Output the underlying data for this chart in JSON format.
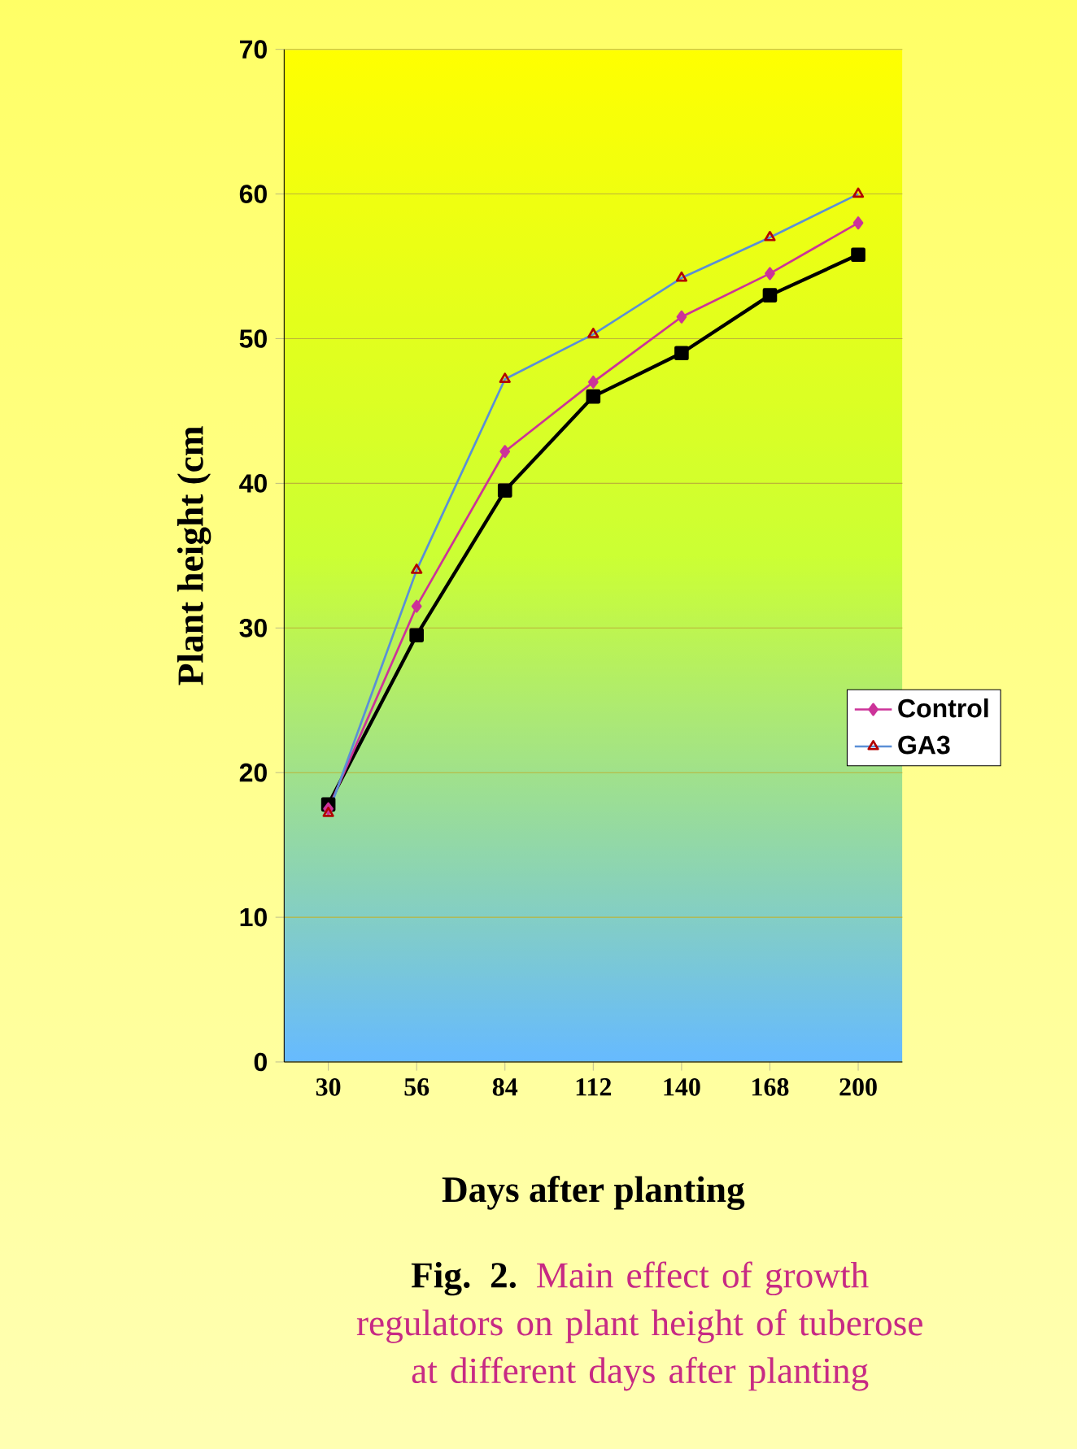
{
  "chart_data": {
    "type": "line",
    "xlabel": "Days after planting",
    "ylabel": "Plant height (cm",
    "categories": [
      "30",
      "56",
      "84",
      "112",
      "140",
      "168",
      "200"
    ],
    "series": [
      {
        "name": "Control",
        "color": "#cc3399",
        "marker": "diamond",
        "values": [
          17.5,
          31.5,
          42.2,
          47,
          51.5,
          54.5,
          58
        ]
      },
      {
        "color": "#000000",
        "marker": "square",
        "values": [
          17.8,
          29.5,
          39.5,
          46,
          49,
          53,
          55.8
        ]
      },
      {
        "name": "GA3",
        "color": "#5b8fd6",
        "marker": "triangle",
        "values": [
          17.2,
          34,
          47.2,
          50.3,
          54.2,
          57,
          60
        ]
      }
    ],
    "ylim": [
      0,
      70
    ],
    "yticks": [
      0,
      10,
      20,
      30,
      40,
      50,
      60,
      70
    ],
    "grid": "y",
    "legend": "right",
    "annotations": [
      "Fig. 2.",
      "Main effect of growth regulators on plant height of tuberose at different days after planting"
    ]
  }
}
